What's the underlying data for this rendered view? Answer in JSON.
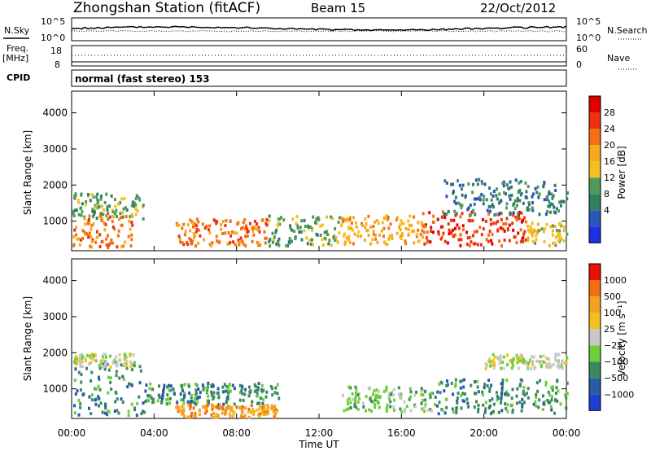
{
  "header": {
    "station": "Zhongshan Station (fitACF)",
    "beam": "Beam 15",
    "date": "22/Oct/2012"
  },
  "panels": {
    "noise": {
      "left_label": "N.Sky",
      "right_label": "N.Search",
      "left_ticks": [
        "10^5",
        "10^0"
      ],
      "right_ticks": [
        "10^5",
        "10^0"
      ]
    },
    "freq": {
      "left_label": "Freq.",
      "left_unit": "[MHz]",
      "right_label": "Nave",
      "left_ticks": [
        "18",
        "8"
      ],
      "right_ticks": [
        "60",
        "0"
      ]
    },
    "cpid": {
      "label": "CPID",
      "text": "normal (fast stereo) 153"
    }
  },
  "axes": {
    "x_ticks": [
      "00:00",
      "04:00",
      "08:00",
      "12:00",
      "16:00",
      "20:00",
      "00:00"
    ],
    "x_label": "Time UT",
    "y_label": "Slant Range [km]",
    "y_ticks": [
      "1000",
      "2000",
      "3000",
      "4000"
    ]
  },
  "colors": {
    "power": [
      "#1f2fe0",
      "#2a56b8",
      "#2f8060",
      "#4f9a5a",
      "#f2c020",
      "#f7a81c",
      "#f57010",
      "#ee3010",
      "#e00000"
    ],
    "velocity": [
      "#1f3fd0",
      "#2a5aa8",
      "#3a8a5e",
      "#6ccf3a",
      "#c8c8c8",
      "#f2c020",
      "#f5a020",
      "#f07010",
      "#e81000"
    ]
  },
  "chart_data": [
    {
      "type": "heatmap",
      "name": "power",
      "xlabel": "Time UT",
      "ylabel": "Slant Range [km]",
      "x_range_hours": [
        0,
        24
      ],
      "ylim": [
        180,
        4600
      ],
      "colorbar": {
        "label": "Power [dB]",
        "ticks": [
          "28",
          "24",
          "20",
          "16",
          "12",
          "8",
          "4"
        ],
        "range": [
          0,
          32
        ]
      },
      "scatter_bands": [
        {
          "t": [
            0.0,
            3.5
          ],
          "r": [
            1100,
            1800
          ],
          "level": 3
        },
        {
          "t": [
            0.0,
            3.0
          ],
          "r": [
            300,
            1200
          ],
          "level": 6
        },
        {
          "t": [
            5.0,
            9.5
          ],
          "r": [
            350,
            1100
          ],
          "level": 6
        },
        {
          "t": [
            9.5,
            13.0
          ],
          "r": [
            350,
            1200
          ],
          "level": 3
        },
        {
          "t": [
            13.0,
            17.0
          ],
          "r": [
            400,
            1200
          ],
          "level": 5
        },
        {
          "t": [
            17.0,
            22.0
          ],
          "r": [
            350,
            1300
          ],
          "level": 7
        },
        {
          "t": [
            18.0,
            24.0
          ],
          "r": [
            1200,
            2200
          ],
          "level": 2
        },
        {
          "t": [
            22.0,
            24.0
          ],
          "r": [
            350,
            1000
          ],
          "level": 4
        }
      ]
    },
    {
      "type": "heatmap",
      "name": "velocity",
      "xlabel": "Time UT",
      "ylabel": "Slant Range [km]",
      "x_range_hours": [
        0,
        24
      ],
      "ylim": [
        180,
        4600
      ],
      "colorbar": {
        "label": "Velocity [m s⁻¹]",
        "ticks": [
          "1000",
          "500",
          "100",
          "25",
          "−25",
          "−100",
          "−500",
          "−1000"
        ],
        "range": [
          -1500,
          1500
        ]
      },
      "scatter_bands": [
        {
          "t": [
            0.0,
            3.5
          ],
          "r": [
            300,
            1800
          ],
          "level": 2
        },
        {
          "t": [
            0.0,
            3.0
          ],
          "r": [
            1650,
            2000
          ],
          "level": 4
        },
        {
          "t": [
            3.5,
            10.0
          ],
          "r": [
            600,
            1200
          ],
          "level": 2
        },
        {
          "t": [
            5.0,
            10.0
          ],
          "r": [
            250,
            600
          ],
          "level": 6
        },
        {
          "t": [
            13.0,
            17.5
          ],
          "r": [
            400,
            1100
          ],
          "level": 3
        },
        {
          "t": [
            17.5,
            24.0
          ],
          "r": [
            350,
            1300
          ],
          "level": 2
        },
        {
          "t": [
            20.0,
            24.0
          ],
          "r": [
            1600,
            2000
          ],
          "level": 4
        }
      ]
    }
  ]
}
